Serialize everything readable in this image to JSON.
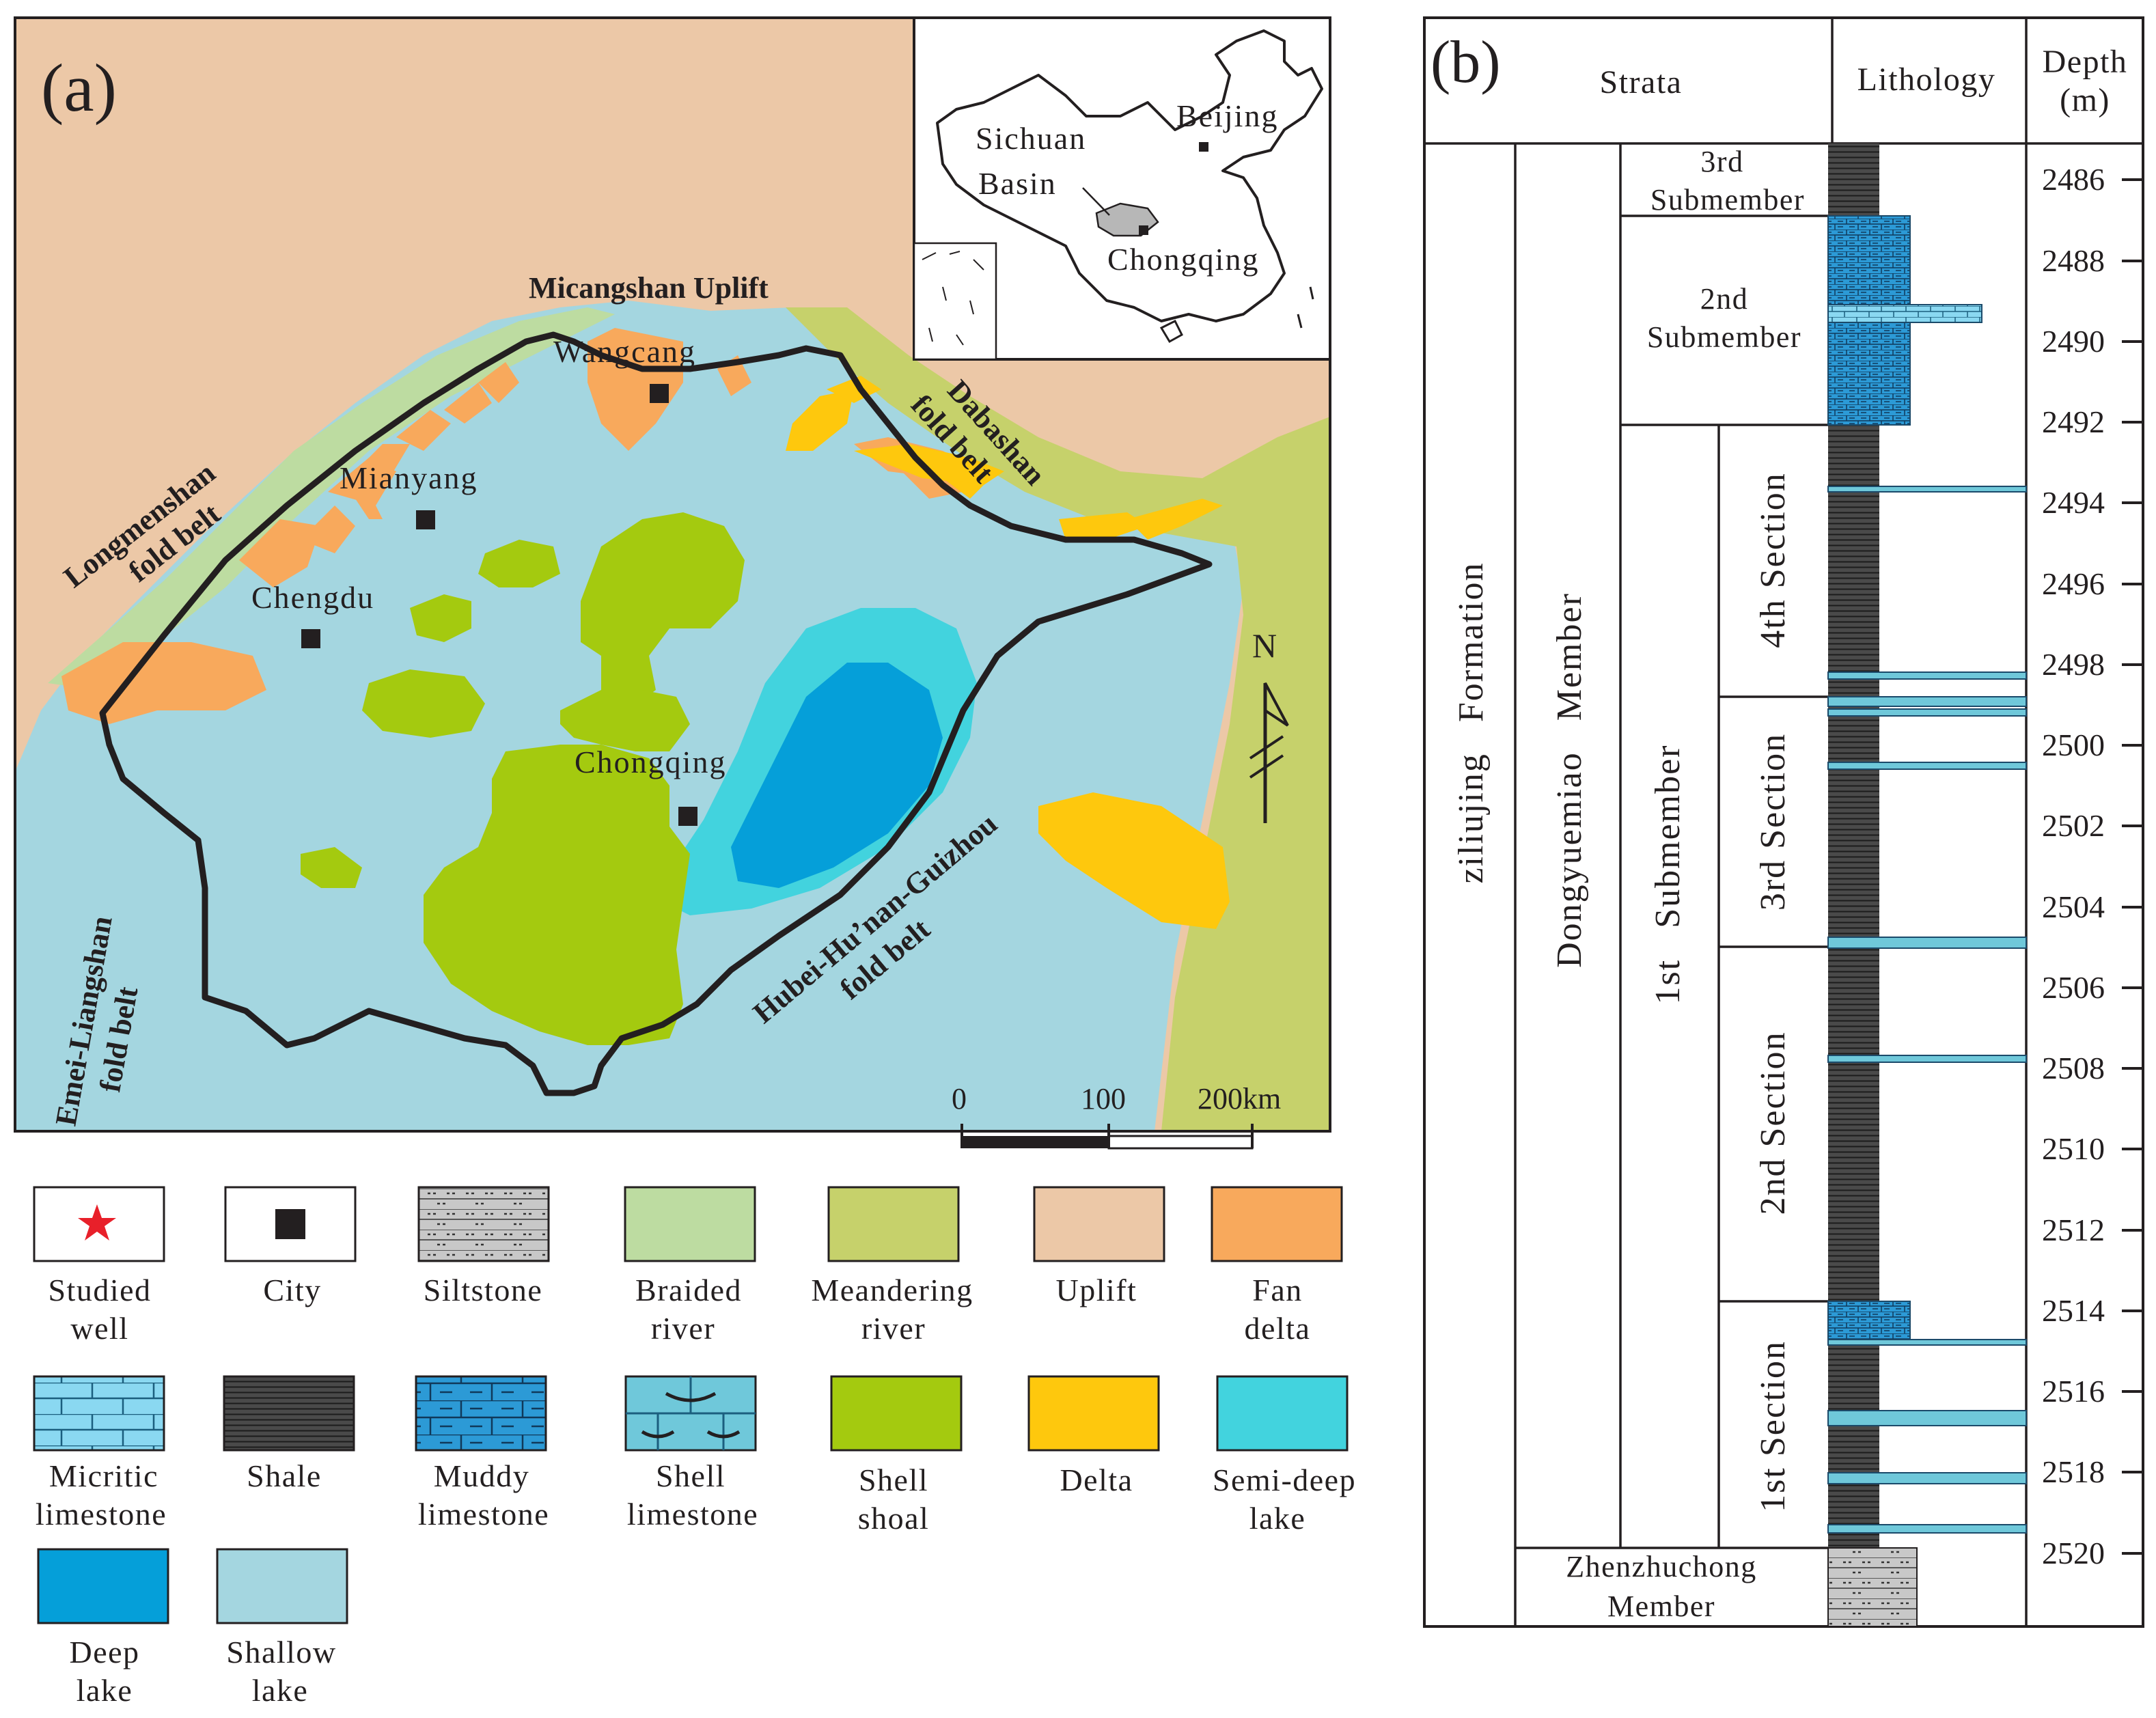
{
  "panel_a": {
    "label": "(a)",
    "regions": {
      "micangshan": "Micangshan Uplift",
      "longmenshan_1": "Longmenshan",
      "longmenshan_2": "fold belt",
      "dabashan_1": "Dabashan",
      "dabashan_2": "fold belt",
      "emei_1": "Emei-Liangshan",
      "emei_2": "fold belt",
      "hubei_1": "Hubei-Hu’nan-Guizhou",
      "hubei_2": "fold belt"
    },
    "cities": {
      "wangcang": "Wangcang",
      "mianyang": "Mianyang",
      "chengdu": "Chengdu",
      "chongqing": "Chongqing"
    },
    "north": "N",
    "scale": {
      "zero": "0",
      "mid": "100",
      "end": "200km"
    },
    "inset": {
      "beijing": "Beijing",
      "sichuan_1": "Sichuan",
      "sichuan_2": "Basin",
      "chongqing": "Chongqing"
    }
  },
  "legend": [
    {
      "key": "studied-well",
      "lines": [
        "Studied",
        "well"
      ]
    },
    {
      "key": "city",
      "lines": [
        "City"
      ]
    },
    {
      "key": "siltstone",
      "lines": [
        "Siltstone"
      ]
    },
    {
      "key": "braided-river",
      "lines": [
        "Braided",
        "river"
      ]
    },
    {
      "key": "meandering-river",
      "lines": [
        "Meandering",
        "river"
      ]
    },
    {
      "key": "uplift",
      "lines": [
        "Uplift"
      ]
    },
    {
      "key": "fan-delta",
      "lines": [
        "Fan",
        "delta"
      ]
    },
    {
      "key": "micritic-limestone",
      "lines": [
        "Micritic",
        "limestone"
      ]
    },
    {
      "key": "shale",
      "lines": [
        "Shale"
      ]
    },
    {
      "key": "muddy-limestone",
      "lines": [
        "Muddy",
        "limestone"
      ]
    },
    {
      "key": "shell-limestone",
      "lines": [
        "Shell",
        "limestone"
      ]
    },
    {
      "key": "shell-shoal",
      "lines": [
        "Shell",
        "shoal"
      ]
    },
    {
      "key": "delta",
      "lines": [
        "Delta"
      ]
    },
    {
      "key": "semi-deep-lake",
      "lines": [
        "Semi-deep",
        "lake"
      ]
    },
    {
      "key": "deep-lake",
      "lines": [
        "Deep",
        "lake"
      ]
    },
    {
      "key": "shallow-lake",
      "lines": [
        "Shallow",
        "lake"
      ]
    }
  ],
  "colors": {
    "uplift": "#ecc8a7",
    "shallow_lake": "#a4d6e0",
    "semi_deep_lake": "#42d3de",
    "deep_lake": "#059fd9",
    "shell_shoal": "#a4ca0f",
    "meandering_river": "#c6d16b",
    "braided_river": "#bddca1",
    "fan_delta": "#f8a95c",
    "delta": "#fec80d",
    "micritic": "#8ad8f1",
    "muddy": "#2c9ad6",
    "shell_limestone": "#6fc8da",
    "shale": "#4a4a4a",
    "siltstone": "#c8c8c8",
    "star": "#e8202a"
  },
  "panel_b": {
    "label": "(b)",
    "headers": {
      "strata": "Strata",
      "lithology": "Lithology",
      "depth_1": "Depth",
      "depth_2": "(m)"
    },
    "formation": "ziliujing   Formation",
    "member": "Dongyuemiao   Member",
    "zhenzhuchong_1": "Zhenzhuchong",
    "zhenzhuchong_2": "Member",
    "submembers": {
      "third_1": "3rd",
      "third_2": "Submember",
      "second_1": "2nd",
      "second_2": "Submember",
      "first": "1st   Submember"
    },
    "sections": {
      "fourth": "4th Section",
      "third": "3rd Section",
      "second": "2nd Section",
      "first": "1st Section"
    },
    "depth_ticks": [
      "2486",
      "2488",
      "2490",
      "2492",
      "2494",
      "2496",
      "2498",
      "2500",
      "2502",
      "2504",
      "2506",
      "2508",
      "2510",
      "2512",
      "2514",
      "2516",
      "2518",
      "2520"
    ]
  }
}
